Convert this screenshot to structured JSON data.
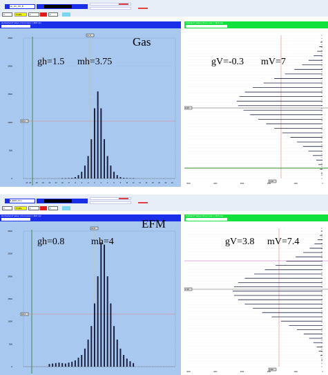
{
  "gas": {
    "overlay_title": "Gas",
    "param_h": "gh=1.5",
    "param_mh": "mh=3.75",
    "param_v": "gV=-0.3",
    "param_mv": "mV=7",
    "run_field": "run_HV_OK_B",
    "title_left": "Horizontal 47 wires 1.8 mm sum = 18.8 mm",
    "title_right": "Vertical 47 wires 1.8 mm sum = 18.8 mm",
    "value_a": "1",
    "value_b": "1",
    "value_c": "1",
    "mode_label": "Profile",
    "peak_label": "17.3",
    "mean_label": "18.4",
    "rms_label": "3.3",
    "right_peak_label": "2.25",
    "right_bottom_label": "4.10",
    "y_ticks": [
      "2500",
      "2000",
      "1500",
      "1000",
      "500",
      "0"
    ],
    "x_ticks": [
      "-21",
      "-20",
      "-18",
      "-16",
      "-14",
      "-12",
      "-10",
      "-8",
      "-6",
      "-4",
      "-2",
      "0",
      "2",
      "4",
      "6",
      "8",
      "10",
      "12",
      "14",
      "16",
      "18",
      "20",
      "22",
      "24"
    ],
    "rx_ticks": [
      "5000",
      "4000",
      "3000",
      "2000",
      "1000",
      "0"
    ]
  },
  "efm": {
    "overlay_title": "EFM",
    "param_h": "gh=0.8",
    "param_mh": "mh=4",
    "param_v": "gV=3.8",
    "param_mv": "mV=7.4",
    "run_field": "B_EFM_Orm",
    "title_left": "Horizontal 47 wires 1.8 mm sum = 18.8 mm",
    "title_right": "Vertical 47 wires 1.8 mm sum = 18.8 mm",
    "value_a": "1",
    "value_b": "1",
    "value_c": "1",
    "mode_label": "Profile",
    "peak_label": "15.8",
    "mean_label": "18.3",
    "rms_label": "3.2",
    "right_peak_label": "2.10",
    "right_bottom_label": "3.90",
    "y_ticks": [
      "3000",
      "2500",
      "2000",
      "1500",
      "1000",
      "500",
      "0"
    ],
    "rx_ticks": [
      "5000",
      "4000",
      "3000",
      "2000",
      "1000",
      "0"
    ]
  },
  "colors": {
    "panel_blue": "#a9c8ef",
    "header_blue": "#1b2fe8",
    "header_green": "#11e13c",
    "right_bg": "#ffffff",
    "bar": "#1a2140",
    "cursor_green": "#2e8b2e",
    "cursor_red": "#e08080",
    "cursor_yellow": "#d4c060"
  },
  "chart_data": [
    {
      "type": "bar",
      "name": "gas-horizontal",
      "x": [
        -10,
        -9,
        -8,
        -7,
        -6,
        -5,
        -4,
        -3,
        -2,
        -1,
        0,
        1,
        2,
        3,
        4,
        5,
        6,
        7,
        8,
        9,
        10,
        11,
        12
      ],
      "values": [
        5,
        6,
        8,
        12,
        25,
        60,
        120,
        230,
        400,
        700,
        1250,
        1550,
        1250,
        700,
        400,
        230,
        120,
        60,
        25,
        12,
        8,
        6,
        5
      ],
      "ylim": [
        0,
        2500
      ]
    },
    {
      "type": "bar",
      "name": "gas-vertical",
      "values": [
        80,
        120,
        200,
        330,
        520,
        760,
        1050,
        1400,
        1800,
        2200,
        2600,
        2900,
        3100,
        3200,
        3150,
        2950,
        2700,
        2400,
        2100,
        1800,
        1500,
        1200,
        950,
        720,
        520,
        360,
        230,
        150,
        90,
        50
      ],
      "xlim": [
        5000,
        0
      ]
    },
    {
      "type": "bar",
      "name": "efm-horizontal",
      "x": [
        -14,
        -13,
        -12,
        -11,
        -10,
        -9,
        -8,
        -7,
        -6,
        -5,
        -4,
        -3,
        -2,
        -1,
        0,
        1,
        2,
        3,
        4,
        5,
        6,
        7,
        8,
        9,
        10,
        11,
        12
      ],
      "values": [
        60,
        70,
        80,
        90,
        80,
        70,
        90,
        110,
        140,
        200,
        260,
        400,
        600,
        900,
        1400,
        2000,
        2750,
        2700,
        2000,
        1400,
        900,
        600,
        400,
        260,
        180,
        120,
        80
      ],
      "ylim": [
        0,
        3000
      ]
    },
    {
      "type": "bar",
      "name": "efm-vertical",
      "values": [
        60,
        100,
        180,
        300,
        480,
        720,
        1000,
        1350,
        1750,
        2150,
        2550,
        2900,
        3150,
        3300,
        3350,
        3300,
        3150,
        2900,
        2600,
        2250,
        1900,
        1550,
        1250,
        950,
        700,
        500,
        340,
        220,
        140,
        80,
        40
      ],
      "xlim": [
        5000,
        0
      ]
    }
  ]
}
